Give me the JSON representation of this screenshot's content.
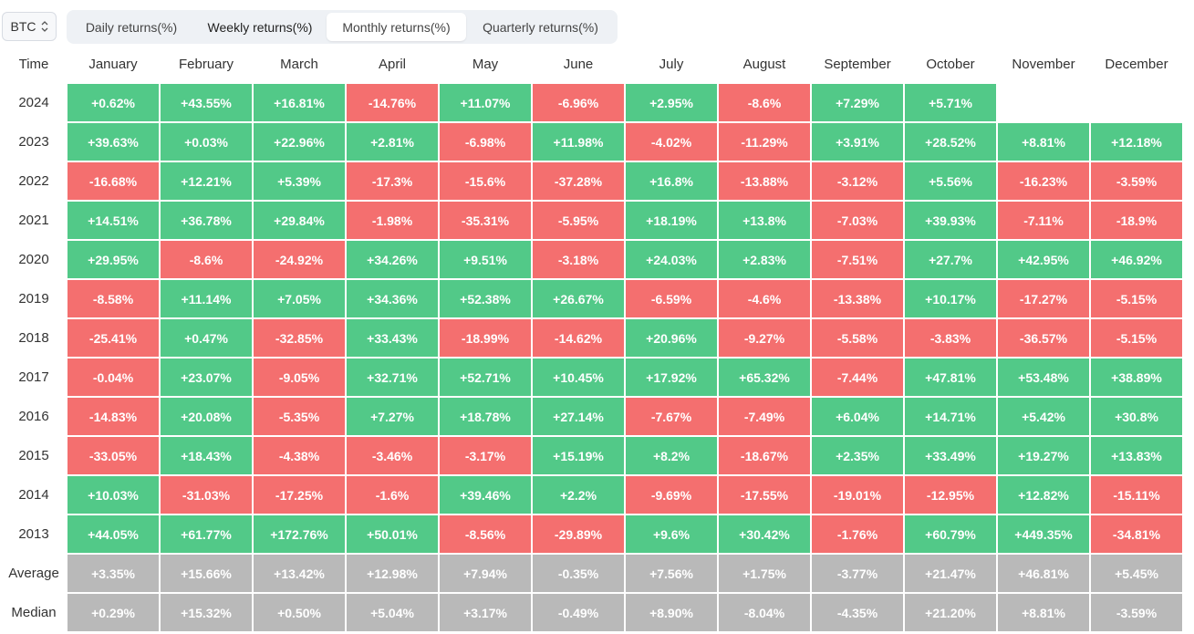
{
  "asset_select": {
    "value": "BTC"
  },
  "tabs": [
    {
      "label": "Daily returns(%)",
      "active": false
    },
    {
      "label": "Weekly returns(%)",
      "active": false
    },
    {
      "label": "Monthly returns(%)",
      "active": true
    },
    {
      "label": "Quarterly returns(%)",
      "active": false
    }
  ],
  "colors": {
    "positive": "#52c988",
    "negative": "#f46f6f",
    "summary": "#b9b9b9"
  },
  "table": {
    "time_header": "Time",
    "months": [
      "January",
      "February",
      "March",
      "April",
      "May",
      "June",
      "July",
      "August",
      "September",
      "October",
      "November",
      "December"
    ],
    "rows": [
      {
        "label": "2024",
        "values": [
          "+0.62%",
          "+43.55%",
          "+16.81%",
          "-14.76%",
          "+11.07%",
          "-6.96%",
          "+2.95%",
          "-8.6%",
          "+7.29%",
          "+5.71%",
          "",
          ""
        ]
      },
      {
        "label": "2023",
        "values": [
          "+39.63%",
          "+0.03%",
          "+22.96%",
          "+2.81%",
          "-6.98%",
          "+11.98%",
          "-4.02%",
          "-11.29%",
          "+3.91%",
          "+28.52%",
          "+8.81%",
          "+12.18%"
        ]
      },
      {
        "label": "2022",
        "values": [
          "-16.68%",
          "+12.21%",
          "+5.39%",
          "-17.3%",
          "-15.6%",
          "-37.28%",
          "+16.8%",
          "-13.88%",
          "-3.12%",
          "+5.56%",
          "-16.23%",
          "-3.59%"
        ]
      },
      {
        "label": "2021",
        "values": [
          "+14.51%",
          "+36.78%",
          "+29.84%",
          "-1.98%",
          "-35.31%",
          "-5.95%",
          "+18.19%",
          "+13.8%",
          "-7.03%",
          "+39.93%",
          "-7.11%",
          "-18.9%"
        ]
      },
      {
        "label": "2020",
        "values": [
          "+29.95%",
          "-8.6%",
          "-24.92%",
          "+34.26%",
          "+9.51%",
          "-3.18%",
          "+24.03%",
          "+2.83%",
          "-7.51%",
          "+27.7%",
          "+42.95%",
          "+46.92%"
        ]
      },
      {
        "label": "2019",
        "values": [
          "-8.58%",
          "+11.14%",
          "+7.05%",
          "+34.36%",
          "+52.38%",
          "+26.67%",
          "-6.59%",
          "-4.6%",
          "-13.38%",
          "+10.17%",
          "-17.27%",
          "-5.15%"
        ]
      },
      {
        "label": "2018",
        "values": [
          "-25.41%",
          "+0.47%",
          "-32.85%",
          "+33.43%",
          "-18.99%",
          "-14.62%",
          "+20.96%",
          "-9.27%",
          "-5.58%",
          "-3.83%",
          "-36.57%",
          "-5.15%"
        ]
      },
      {
        "label": "2017",
        "values": [
          "-0.04%",
          "+23.07%",
          "-9.05%",
          "+32.71%",
          "+52.71%",
          "+10.45%",
          "+17.92%",
          "+65.32%",
          "-7.44%",
          "+47.81%",
          "+53.48%",
          "+38.89%"
        ]
      },
      {
        "label": "2016",
        "values": [
          "-14.83%",
          "+20.08%",
          "-5.35%",
          "+7.27%",
          "+18.78%",
          "+27.14%",
          "-7.67%",
          "-7.49%",
          "+6.04%",
          "+14.71%",
          "+5.42%",
          "+30.8%"
        ]
      },
      {
        "label": "2015",
        "values": [
          "-33.05%",
          "+18.43%",
          "-4.38%",
          "-3.46%",
          "-3.17%",
          "+15.19%",
          "+8.2%",
          "-18.67%",
          "+2.35%",
          "+33.49%",
          "+19.27%",
          "+13.83%"
        ]
      },
      {
        "label": "2014",
        "values": [
          "+10.03%",
          "-31.03%",
          "-17.25%",
          "-1.6%",
          "+39.46%",
          "+2.2%",
          "-9.69%",
          "-17.55%",
          "-19.01%",
          "-12.95%",
          "+12.82%",
          "-15.11%"
        ]
      },
      {
        "label": "2013",
        "values": [
          "+44.05%",
          "+61.77%",
          "+172.76%",
          "+50.01%",
          "-8.56%",
          "-29.89%",
          "+9.6%",
          "+30.42%",
          "-1.76%",
          "+60.79%",
          "+449.35%",
          "-34.81%"
        ]
      }
    ],
    "summary_rows": [
      {
        "label": "Average",
        "values": [
          "+3.35%",
          "+15.66%",
          "+13.42%",
          "+12.98%",
          "+7.94%",
          "-0.35%",
          "+7.56%",
          "+1.75%",
          "-3.77%",
          "+21.47%",
          "+46.81%",
          "+5.45%"
        ]
      },
      {
        "label": "Median",
        "values": [
          "+0.29%",
          "+15.32%",
          "+0.50%",
          "+5.04%",
          "+3.17%",
          "-0.49%",
          "+8.90%",
          "-8.04%",
          "-4.35%",
          "+21.20%",
          "+8.81%",
          "-3.59%"
        ]
      }
    ]
  }
}
